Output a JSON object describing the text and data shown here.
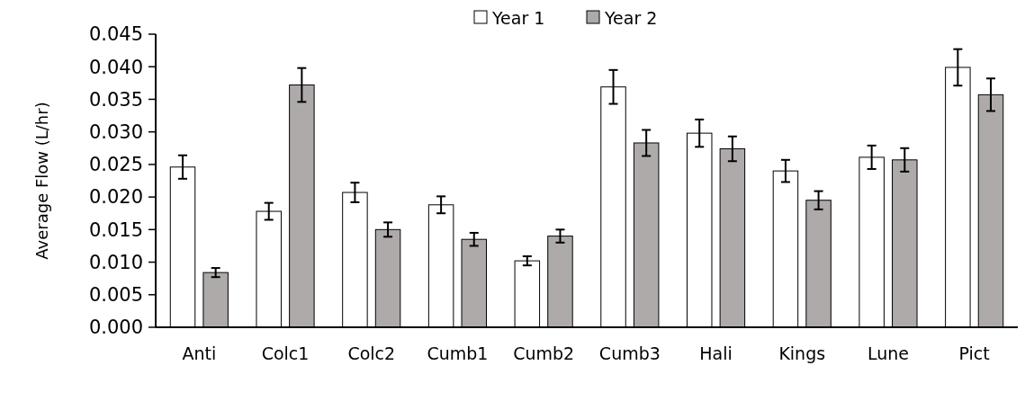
{
  "chart_data": {
    "type": "bar",
    "ylabel": "Average Flow (L/hr)",
    "categories": [
      "Anti",
      "Colc1",
      "Colc2",
      "Cumb1",
      "Cumb2",
      "Cumb3",
      "Hali",
      "Kings",
      "Lune",
      "Pict"
    ],
    "series": [
      {
        "name": "Year 1",
        "color": "#ffffff",
        "values": [
          0.0246,
          0.0178,
          0.0207,
          0.0188,
          0.0102,
          0.0369,
          0.0298,
          0.024,
          0.0261,
          0.0399
        ],
        "errors": [
          0.0018,
          0.0013,
          0.0015,
          0.0013,
          0.0007,
          0.0026,
          0.0021,
          0.0017,
          0.0018,
          0.0028
        ]
      },
      {
        "name": "Year 2",
        "color": "#aeaaaa",
        "values": [
          0.0084,
          0.0372,
          0.015,
          0.0135,
          0.014,
          0.0283,
          0.0274,
          0.0195,
          0.0257,
          0.0357
        ],
        "errors": [
          0.0007,
          0.0026,
          0.0011,
          0.001,
          0.001,
          0.002,
          0.0019,
          0.0014,
          0.0018,
          0.0025
        ]
      }
    ],
    "ylim": [
      0,
      0.045
    ],
    "yticks": [
      {
        "value": 0,
        "label": "0.000"
      },
      {
        "value": 0.005,
        "label": "0.005"
      },
      {
        "value": 0.01,
        "label": "0.010"
      },
      {
        "value": 0.015,
        "label": "0.015"
      },
      {
        "value": 0.02,
        "label": "0.020"
      },
      {
        "value": 0.025,
        "label": "0.025"
      },
      {
        "value": 0.03,
        "label": "0.030"
      },
      {
        "value": 0.035,
        "label": "0.035"
      },
      {
        "value": 0.04,
        "label": "0.040"
      },
      {
        "value": 0.045,
        "label": "0.045"
      }
    ],
    "legend": "top"
  }
}
